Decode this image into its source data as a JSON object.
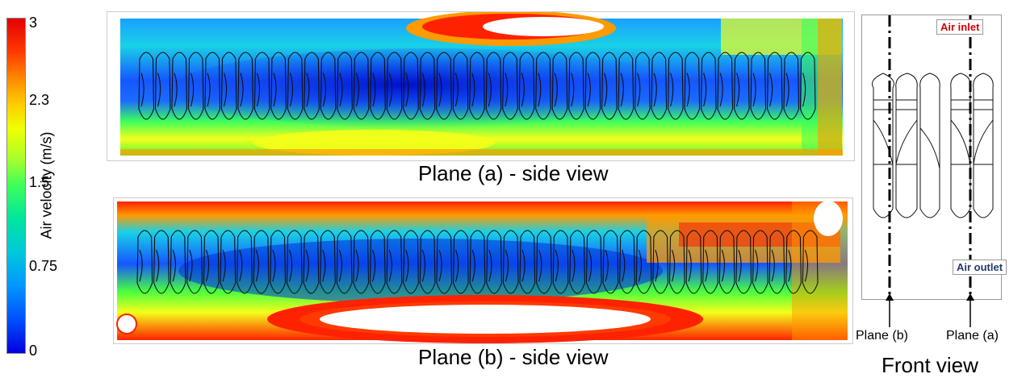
{
  "colorbar": {
    "label": "Air velocity (m/s)",
    "ticks": [
      "3",
      "2.3",
      "1.5",
      "0.75",
      "0"
    ]
  },
  "panels": {
    "a_caption": "Plane (a) - side view",
    "b_caption": "Plane (b) - side view"
  },
  "front_view": {
    "title": "Front view",
    "inlet_label": "Air inlet",
    "outlet_label": "Air outlet",
    "plane_b_label": "Plane (b)",
    "plane_a_label": "Plane (a)",
    "colors": {
      "inlet": "#d00000",
      "outlet": "#1f3a6a"
    }
  },
  "colors": {
    "red": "#ff2200",
    "orange": "#ff9a00",
    "yellow": "#f4ff1a",
    "green": "#49ff3e",
    "cyan": "#19d1e6",
    "blue": "#1557ff",
    "deep": "#0000cc"
  }
}
